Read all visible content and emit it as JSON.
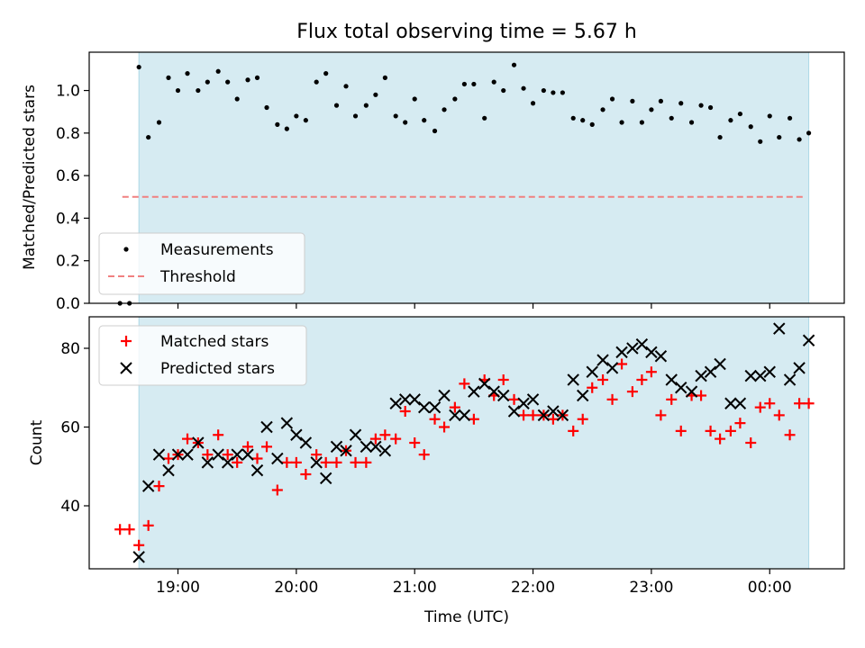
{
  "title": "Flux total observing time = 5.67 h",
  "chart_data": [
    {
      "type": "scatter",
      "name": "ratio-panel",
      "ylabel": "Matched/Predicted stars",
      "xlabel": "",
      "xlim": [
        18.25,
        24.63
      ],
      "ylim": [
        0.0,
        1.18
      ],
      "yticks": [
        0.0,
        0.2,
        0.4,
        0.6,
        0.8,
        1.0
      ],
      "ytick_labels": [
        "0.0",
        "0.2",
        "0.4",
        "0.6",
        "0.8",
        "1.0"
      ],
      "observing_window": [
        18.67,
        24.33
      ],
      "legend": [
        "Measurements",
        "Threshold"
      ],
      "legend_position": "lower-left",
      "threshold": {
        "name": "Threshold",
        "value": 0.5,
        "x_range": [
          18.53,
          24.3
        ],
        "color": "#f08080"
      },
      "series": [
        {
          "name": "Measurements",
          "color": "#000000",
          "x": [
            18.51,
            18.59,
            18.67,
            18.75,
            18.84,
            18.92,
            19.0,
            19.08,
            19.17,
            19.25,
            19.34,
            19.42,
            19.5,
            19.59,
            19.67,
            19.75,
            19.84,
            19.92,
            20.0,
            20.08,
            20.17,
            20.25,
            20.34,
            20.42,
            20.5,
            20.59,
            20.67,
            20.75,
            20.84,
            20.92,
            21.0,
            21.08,
            21.17,
            21.25,
            21.34,
            21.42,
            21.5,
            21.59,
            21.67,
            21.75,
            21.84,
            21.92,
            22.0,
            22.09,
            22.17,
            22.25,
            22.34,
            22.42,
            22.5,
            22.59,
            22.67,
            22.75,
            22.84,
            22.92,
            23.0,
            23.08,
            23.17,
            23.25,
            23.34,
            23.42,
            23.5,
            23.58,
            23.67,
            23.75,
            23.84,
            23.92,
            24.0,
            24.08,
            24.17,
            24.25,
            24.33
          ],
          "y": [
            0.0,
            0.0,
            1.11,
            0.78,
            0.85,
            1.06,
            1.0,
            1.08,
            1.0,
            1.04,
            1.09,
            1.04,
            0.96,
            1.05,
            1.06,
            0.92,
            0.84,
            0.82,
            0.88,
            0.86,
            1.04,
            1.08,
            0.93,
            1.02,
            0.88,
            0.93,
            0.98,
            1.06,
            0.88,
            0.85,
            0.96,
            0.86,
            0.81,
            0.91,
            0.96,
            1.03,
            1.03,
            0.87,
            1.04,
            1.0,
            1.12,
            1.01,
            0.94,
            1.0,
            0.99,
            0.99,
            0.87,
            0.86,
            0.84,
            0.91,
            0.96,
            0.85,
            0.95,
            0.85,
            0.91,
            0.95,
            0.87,
            0.94,
            0.85,
            0.93,
            0.92,
            0.78,
            0.86,
            0.89,
            0.83,
            0.76,
            0.88,
            0.78,
            0.87,
            0.77,
            0.8
          ]
        }
      ]
    },
    {
      "type": "scatter",
      "name": "count-panel",
      "ylabel": "Count",
      "xlabel": "Time (UTC)",
      "xlim": [
        18.25,
        24.63
      ],
      "ylim": [
        24,
        88
      ],
      "yticks": [
        40,
        60,
        80
      ],
      "ytick_labels": [
        "40",
        "60",
        "80"
      ],
      "xticks": [
        19.0,
        20.0,
        21.0,
        22.0,
        23.0,
        24.0
      ],
      "xtick_labels": [
        "19:00",
        "20:00",
        "21:00",
        "22:00",
        "23:00",
        "00:00"
      ],
      "observing_window": [
        18.67,
        24.33
      ],
      "legend": [
        "Matched stars",
        "Predicted stars"
      ],
      "legend_position": "upper-left",
      "series": [
        {
          "name": "Matched stars",
          "marker": "plus",
          "color": "#ff0000",
          "x": [
            18.51,
            18.59,
            18.67,
            18.75,
            18.84,
            18.92,
            19.0,
            19.08,
            19.17,
            19.25,
            19.34,
            19.42,
            19.5,
            19.59,
            19.67,
            19.75,
            19.84,
            19.92,
            20.0,
            20.08,
            20.17,
            20.25,
            20.34,
            20.42,
            20.5,
            20.59,
            20.67,
            20.75,
            20.84,
            20.92,
            21.0,
            21.08,
            21.17,
            21.25,
            21.34,
            21.42,
            21.5,
            21.59,
            21.67,
            21.75,
            21.84,
            21.92,
            22.0,
            22.09,
            22.17,
            22.25,
            22.34,
            22.42,
            22.5,
            22.59,
            22.67,
            22.75,
            22.84,
            22.92,
            23.0,
            23.08,
            23.17,
            23.25,
            23.34,
            23.42,
            23.5,
            23.58,
            23.67,
            23.75,
            23.84,
            23.92,
            24.0,
            24.08,
            24.17,
            24.25,
            24.33
          ],
          "y": [
            34,
            34,
            30,
            35,
            45,
            52,
            53,
            57,
            56,
            53,
            58,
            53,
            51,
            55,
            52,
            55,
            44,
            51,
            51,
            48,
            53,
            51,
            51,
            54,
            51,
            51,
            57,
            58,
            57,
            64,
            56,
            53,
            62,
            60,
            65,
            71,
            62,
            72,
            68,
            72,
            67,
            63,
            63,
            63,
            62,
            63,
            59,
            62,
            70,
            72,
            67,
            76,
            69,
            72,
            74,
            63,
            67,
            59,
            68,
            68,
            59,
            57,
            59,
            61,
            56,
            65,
            66,
            63,
            58,
            66,
            66
          ]
        },
        {
          "name": "Predicted stars",
          "marker": "x",
          "color": "#000000",
          "x": [
            18.67,
            18.75,
            18.84,
            18.92,
            19.0,
            19.08,
            19.17,
            19.25,
            19.34,
            19.42,
            19.5,
            19.59,
            19.67,
            19.75,
            19.84,
            19.92,
            20.0,
            20.08,
            20.17,
            20.25,
            20.34,
            20.42,
            20.5,
            20.59,
            20.67,
            20.75,
            20.84,
            20.92,
            21.0,
            21.08,
            21.17,
            21.25,
            21.34,
            21.42,
            21.5,
            21.59,
            21.67,
            21.75,
            21.84,
            21.92,
            22.0,
            22.09,
            22.17,
            22.25,
            22.34,
            22.42,
            22.5,
            22.59,
            22.67,
            22.75,
            22.84,
            22.92,
            23.0,
            23.08,
            23.17,
            23.25,
            23.34,
            23.42,
            23.5,
            23.58,
            23.67,
            23.75,
            23.84,
            23.92,
            24.0,
            24.08,
            24.17,
            24.25,
            24.33
          ],
          "y": [
            27,
            45,
            53,
            49,
            53,
            53,
            56,
            51,
            53,
            51,
            53,
            53,
            49,
            60,
            52,
            61,
            58,
            56,
            51,
            47,
            55,
            54,
            58,
            55,
            55,
            54,
            66,
            67,
            67,
            65,
            65,
            68,
            63,
            63,
            69,
            71,
            69,
            68,
            64,
            66,
            67,
            63,
            64,
            63,
            72,
            68,
            74,
            77,
            75,
            79,
            80,
            81,
            79,
            78,
            72,
            70,
            69,
            73,
            74,
            76,
            66,
            66,
            73,
            73,
            74,
            85,
            72,
            75,
            82
          ]
        }
      ]
    }
  ]
}
